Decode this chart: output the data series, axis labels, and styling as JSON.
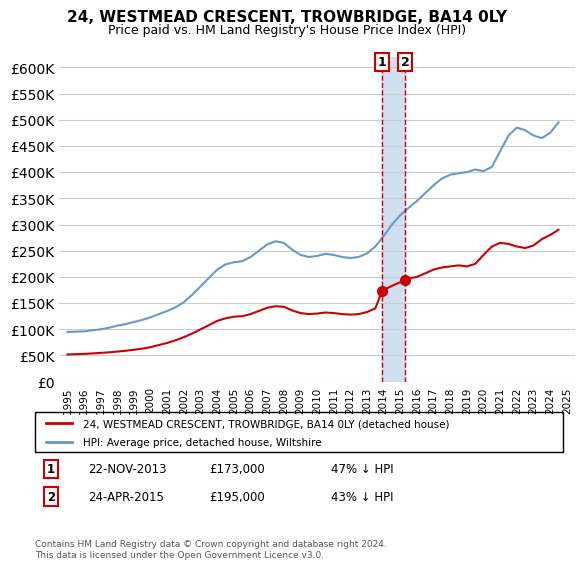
{
  "title": "24, WESTMEAD CRESCENT, TROWBRIDGE, BA14 0LY",
  "subtitle": "Price paid vs. HM Land Registry's House Price Index (HPI)",
  "legend_line1": "24, WESTMEAD CRESCENT, TROWBRIDGE, BA14 0LY (detached house)",
  "legend_line2": "HPI: Average price, detached house, Wiltshire",
  "transaction1_date": "22-NOV-2013",
  "transaction1_price": 173000,
  "transaction1_pct": "47% ↓ HPI",
  "transaction1_year": 2013.9,
  "transaction2_date": "24-APR-2015",
  "transaction2_price": 195000,
  "transaction2_pct": "43% ↓ HPI",
  "transaction2_year": 2015.3,
  "footnote": "Contains HM Land Registry data © Crown copyright and database right 2024.\nThis data is licensed under the Open Government Licence v3.0.",
  "hpi_color": "#6699cc",
  "price_color": "#cc0000",
  "marker_color": "#cc0000",
  "vline_color": "#cc0000",
  "highlight_color": "#d0e0f0",
  "ylim": [
    0,
    620000
  ],
  "yticks": [
    0,
    50000,
    100000,
    150000,
    200000,
    250000,
    300000,
    350000,
    400000,
    450000,
    500000,
    550000,
    600000
  ],
  "hpi_years": [
    1995,
    1995.5,
    1996,
    1996.5,
    1997,
    1997.5,
    1998,
    1998.5,
    1999,
    1999.5,
    2000,
    2000.5,
    2001,
    2001.5,
    2002,
    2002.5,
    2003,
    2003.5,
    2004,
    2004.5,
    2005,
    2005.5,
    2006,
    2006.5,
    2007,
    2007.5,
    2008,
    2008.5,
    2009,
    2009.5,
    2010,
    2010.5,
    2011,
    2011.5,
    2012,
    2012.5,
    2013,
    2013.5,
    2014,
    2014.5,
    2015,
    2015.5,
    2016,
    2016.5,
    2017,
    2017.5,
    2018,
    2018.5,
    2019,
    2019.5,
    2020,
    2020.5,
    2021,
    2021.5,
    2022,
    2022.5,
    2023,
    2023.5,
    2024,
    2024.5
  ],
  "hpi_values": [
    95000,
    95500,
    96000,
    98000,
    100000,
    103000,
    107000,
    110000,
    114000,
    118000,
    123000,
    129000,
    135000,
    142000,
    152000,
    166000,
    182000,
    198000,
    214000,
    224000,
    228000,
    230000,
    238000,
    250000,
    262000,
    268000,
    265000,
    252000,
    242000,
    238000,
    240000,
    244000,
    242000,
    238000,
    236000,
    238000,
    245000,
    258000,
    278000,
    300000,
    318000,
    332000,
    345000,
    360000,
    375000,
    388000,
    395000,
    398000,
    400000,
    405000,
    402000,
    410000,
    440000,
    470000,
    485000,
    480000,
    470000,
    465000,
    475000,
    495000
  ],
  "price_years": [
    1995,
    1995.5,
    1996,
    1996.5,
    1997,
    1997.5,
    1998,
    1998.5,
    1999,
    1999.5,
    2000,
    2000.5,
    2001,
    2001.5,
    2002,
    2002.5,
    2003,
    2003.5,
    2004,
    2004.5,
    2005,
    2005.5,
    2006,
    2006.5,
    2007,
    2007.5,
    2008,
    2008.5,
    2009,
    2009.5,
    2010,
    2010.5,
    2011,
    2011.5,
    2012,
    2012.5,
    2013,
    2013.5,
    2013.9,
    2014,
    2014.5,
    2015,
    2015.3,
    2015.5,
    2016,
    2016.5,
    2017,
    2017.5,
    2018,
    2018.5,
    2019,
    2019.5,
    2020,
    2020.5,
    2021,
    2021.5,
    2022,
    2022.5,
    2023,
    2023.5,
    2024,
    2024.5
  ],
  "price_values": [
    52000,
    52500,
    53000,
    54000,
    55000,
    56000,
    57500,
    59000,
    61000,
    63000,
    66000,
    70000,
    74000,
    79000,
    85000,
    92000,
    100000,
    108000,
    116000,
    121000,
    124000,
    125000,
    129000,
    135000,
    141000,
    144000,
    143000,
    136000,
    131000,
    129000,
    130000,
    132000,
    131000,
    129000,
    128000,
    129000,
    133000,
    140000,
    173000,
    175000,
    183000,
    190000,
    195000,
    197000,
    200000,
    207000,
    214000,
    218000,
    220000,
    222000,
    220000,
    225000,
    242000,
    258000,
    265000,
    263000,
    258000,
    255000,
    260000,
    272000,
    280000,
    290000
  ]
}
